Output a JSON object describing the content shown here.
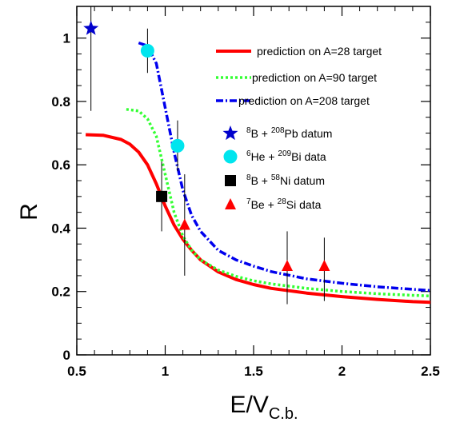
{
  "chart_data": {
    "type": "line",
    "xlabel": "E/V",
    "xlabel_sub": "C.b.",
    "ylabel": "R",
    "xlim": [
      0.5,
      2.5
    ],
    "ylim": [
      0,
      1.1
    ],
    "x_ticks": [
      {
        "value": 0.5,
        "label": "0.5"
      },
      {
        "value": 1,
        "label": "1"
      },
      {
        "value": 1.5,
        "label": "1.5"
      },
      {
        "value": 2,
        "label": "2"
      },
      {
        "value": 2.5,
        "label": "2.5"
      }
    ],
    "y_ticks": [
      {
        "value": 0,
        "label": "0"
      },
      {
        "value": 0.2,
        "label": "0.2"
      },
      {
        "value": 0.4,
        "label": "0.4"
      },
      {
        "value": 0.6,
        "label": "0.6"
      },
      {
        "value": 0.8,
        "label": "0.8"
      },
      {
        "value": 1,
        "label": "1"
      }
    ],
    "grid": false,
    "legend_position": "top-right",
    "series": [
      {
        "name": "prediction on A=28 target",
        "style": "solid",
        "color": "#ff0000",
        "x": [
          0.55,
          0.65,
          0.75,
          0.8,
          0.85,
          0.9,
          0.95,
          1.0,
          1.05,
          1.1,
          1.15,
          1.2,
          1.3,
          1.4,
          1.5,
          1.6,
          1.8,
          2.0,
          2.2,
          2.4,
          2.5
        ],
        "y": [
          0.695,
          0.693,
          0.68,
          0.665,
          0.64,
          0.6,
          0.54,
          0.47,
          0.41,
          0.365,
          0.33,
          0.3,
          0.262,
          0.238,
          0.222,
          0.21,
          0.195,
          0.184,
          0.175,
          0.168,
          0.166
        ]
      },
      {
        "name": "prediction on A=90 target",
        "style": "dotted",
        "color": "#33ff33",
        "x": [
          0.78,
          0.85,
          0.9,
          0.95,
          1.0,
          1.05,
          1.1,
          1.15,
          1.2,
          1.3,
          1.4,
          1.5,
          1.6,
          1.8,
          2.0,
          2.2,
          2.4,
          2.5
        ],
        "y": [
          0.775,
          0.77,
          0.745,
          0.69,
          0.57,
          0.45,
          0.375,
          0.33,
          0.3,
          0.268,
          0.248,
          0.234,
          0.224,
          0.21,
          0.2,
          0.193,
          0.188,
          0.186
        ]
      },
      {
        "name": "prediction on A=208 target",
        "style": "dashdot",
        "color": "#0000ee",
        "x": [
          0.85,
          0.9,
          0.95,
          1.0,
          1.05,
          1.1,
          1.15,
          1.2,
          1.3,
          1.4,
          1.5,
          1.6,
          1.8,
          2.0,
          2.2,
          2.4,
          2.5
        ],
        "y": [
          0.985,
          0.975,
          0.92,
          0.78,
          0.64,
          0.52,
          0.44,
          0.39,
          0.33,
          0.3,
          0.28,
          0.263,
          0.24,
          0.226,
          0.215,
          0.207,
          0.203
        ]
      }
    ],
    "data_points": [
      {
        "name": "8B + 208Pb datum",
        "marker": "star",
        "color": "#0000cc",
        "points": [
          {
            "x": 0.58,
            "y": 1.03,
            "err_low": 0.77,
            "err_high": 1.1
          }
        ]
      },
      {
        "name": "6He + 209Bi data",
        "marker": "circle",
        "color": "#00e5ee",
        "points": [
          {
            "x": 0.9,
            "y": 0.96,
            "err_low": 0.89,
            "err_high": 1.03
          },
          {
            "x": 1.07,
            "y": 0.66,
            "err_low": 0.58,
            "err_high": 0.74
          }
        ]
      },
      {
        "name": "8B + 58Ni datum",
        "marker": "square",
        "color": "#000000",
        "points": [
          {
            "x": 0.98,
            "y": 0.5,
            "err_low": 0.39,
            "err_high": 0.61
          }
        ]
      },
      {
        "name": "7Be + 28Si data",
        "marker": "triangle",
        "color": "#ff0000",
        "points": [
          {
            "x": 1.11,
            "y": 0.41,
            "err_low": 0.25,
            "err_high": 0.57
          },
          {
            "x": 1.69,
            "y": 0.28,
            "err_low": 0.16,
            "err_high": 0.39
          },
          {
            "x": 1.9,
            "y": 0.28,
            "err_low": 0.17,
            "err_high": 0.37
          }
        ]
      }
    ],
    "legend": {
      "lines": [
        {
          "label": "prediction on A=28 target",
          "style": "solid",
          "color": "#ff0000"
        },
        {
          "label": "prediction on A=90 target",
          "style": "dotted",
          "color": "#33ff33"
        },
        {
          "label": "prediction on A=208 target",
          "style": "dashdot",
          "color": "#0000ee"
        }
      ],
      "markers": [
        {
          "marker": "star",
          "color": "#0000cc",
          "sup1": "8",
          "p1": "B + ",
          "sup2": "208",
          "p2": "Pb datum"
        },
        {
          "marker": "circle",
          "color": "#00e5ee",
          "sup1": "6",
          "p1": "He + ",
          "sup2": "209",
          "p2": "Bi data"
        },
        {
          "marker": "square",
          "color": "#000000",
          "sup1": "8",
          "p1": "B + ",
          "sup2": "58",
          "p2": "Ni datum"
        },
        {
          "marker": "triangle",
          "color": "#ff0000",
          "sup1": "7",
          "p1": "Be + ",
          "sup2": "28",
          "p2": "Si data"
        }
      ]
    }
  }
}
